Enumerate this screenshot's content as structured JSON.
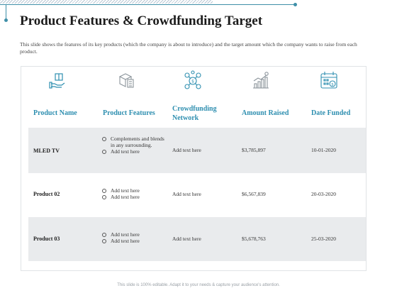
{
  "title": "Product Features & Crowdfunding Target",
  "description": "This slide shows the features of its key products (which the company is about to introduce) and the target amount which the company wants to raise from each product.",
  "icons": [
    "hand-box-icon",
    "packages-icon",
    "money-network-icon",
    "growth-chart-icon",
    "calendar-money-icon"
  ],
  "accent_color": "#2f8fb0",
  "table": {
    "headers": {
      "name": "Product Name",
      "features": "Product Features",
      "network_line1": "Crowdfunding",
      "network_line2": "Network",
      "amount": "Amount Raised",
      "date": "Date Funded"
    },
    "rows": [
      {
        "name": "MLED TV",
        "features": [
          "Complements and blends in any surrounding.",
          "Add text here"
        ],
        "network": "Add text here",
        "amount": "$3,785,897",
        "date": "10-01-2020"
      },
      {
        "name": "Product 02",
        "features": [
          "Add text here",
          "Add text here"
        ],
        "network": "Add text here",
        "amount": "$6,567,839",
        "date": "20-03-2020"
      },
      {
        "name": "Product 03",
        "features": [
          "Add text here",
          "Add text here"
        ],
        "network": "Add text here",
        "amount": "$5,678,763",
        "date": "25-03-2020"
      }
    ]
  },
  "footer": "This slide is 100% editable. Adapt it to your needs & capture your audience's attention."
}
